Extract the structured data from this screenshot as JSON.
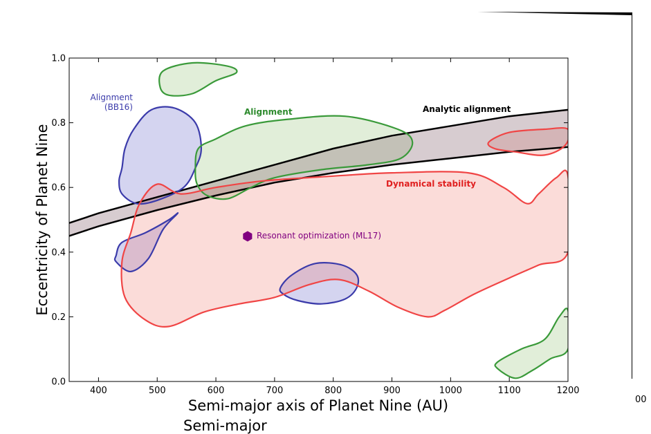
{
  "chart_data": {
    "type": "scatter",
    "xlabel": "Semi-major axis of Planet Nine (AU)",
    "ylabel": "Eccentricity of Planet Nine",
    "xlim": [
      350,
      1200
    ],
    "ylim": [
      0.0,
      1.0
    ],
    "x_ticks": [
      "400",
      "500",
      "600",
      "700",
      "800",
      "900",
      "1000",
      "1100",
      "1200"
    ],
    "y_ticks": [
      "0.0",
      "0.2",
      "0.4",
      "0.6",
      "0.8",
      "1.0"
    ],
    "colors": {
      "blue": "#3b3baa",
      "green": "#3a9a3a",
      "red": "#f04545",
      "black": "#000000",
      "purple": "#800080"
    },
    "band": {
      "name": "Analytic alignment",
      "upper": [
        [
          350,
          0.49
        ],
        [
          400,
          0.52
        ],
        [
          500,
          0.57
        ],
        [
          600,
          0.62
        ],
        [
          700,
          0.67
        ],
        [
          800,
          0.72
        ],
        [
          900,
          0.76
        ],
        [
          1000,
          0.79
        ],
        [
          1100,
          0.82
        ],
        [
          1200,
          0.84
        ]
      ],
      "lower": [
        [
          350,
          0.45
        ],
        [
          400,
          0.48
        ],
        [
          500,
          0.53
        ],
        [
          600,
          0.575
        ],
        [
          700,
          0.615
        ],
        [
          800,
          0.645
        ],
        [
          900,
          0.67
        ],
        [
          1000,
          0.69
        ],
        [
          1100,
          0.71
        ],
        [
          1200,
          0.725
        ]
      ]
    },
    "regions": [
      {
        "name": "Alignment (BB16) main",
        "color": "blue",
        "points": [
          [
            440,
            0.66
          ],
          [
            445,
            0.72
          ],
          [
            460,
            0.78
          ],
          [
            490,
            0.84
          ],
          [
            530,
            0.845
          ],
          [
            565,
            0.8
          ],
          [
            575,
            0.72
          ],
          [
            565,
            0.66
          ],
          [
            545,
            0.6
          ],
          [
            500,
            0.56
          ],
          [
            465,
            0.55
          ],
          [
            440,
            0.58
          ],
          [
            435,
            0.62
          ]
        ]
      },
      {
        "name": "Alignment (BB16) lower",
        "color": "blue",
        "points": [
          [
            430,
            0.39
          ],
          [
            440,
            0.43
          ],
          [
            480,
            0.46
          ],
          [
            520,
            0.5
          ],
          [
            535,
            0.52
          ],
          [
            510,
            0.47
          ],
          [
            485,
            0.38
          ],
          [
            455,
            0.34
          ],
          [
            430,
            0.37
          ]
        ]
      },
      {
        "name": "Alignment (BB16) middle",
        "color": "blue",
        "points": [
          [
            710,
            0.29
          ],
          [
            730,
            0.33
          ],
          [
            770,
            0.365
          ],
          [
            815,
            0.36
          ],
          [
            840,
            0.33
          ],
          [
            840,
            0.29
          ],
          [
            820,
            0.255
          ],
          [
            780,
            0.24
          ],
          [
            740,
            0.25
          ],
          [
            715,
            0.27
          ]
        ]
      },
      {
        "name": "Alignment main",
        "color": "green",
        "points": [
          [
            565,
            0.66
          ],
          [
            570,
            0.72
          ],
          [
            600,
            0.75
          ],
          [
            650,
            0.79
          ],
          [
            720,
            0.81
          ],
          [
            820,
            0.82
          ],
          [
            910,
            0.78
          ],
          [
            935,
            0.74
          ],
          [
            915,
            0.69
          ],
          [
            860,
            0.67
          ],
          [
            780,
            0.655
          ],
          [
            700,
            0.63
          ],
          [
            660,
            0.6
          ],
          [
            620,
            0.565
          ],
          [
            585,
            0.575
          ],
          [
            568,
            0.61
          ]
        ]
      },
      {
        "name": "Alignment top",
        "color": "green",
        "points": [
          [
            510,
            0.96
          ],
          [
            560,
            0.985
          ],
          [
            620,
            0.975
          ],
          [
            635,
            0.955
          ],
          [
            600,
            0.93
          ],
          [
            560,
            0.89
          ],
          [
            520,
            0.885
          ],
          [
            505,
            0.91
          ]
        ]
      },
      {
        "name": "Alignment lower right",
        "color": "green",
        "points": [
          [
            1080,
            0.06
          ],
          [
            1120,
            0.1
          ],
          [
            1160,
            0.13
          ],
          [
            1185,
            0.2
          ],
          [
            1200,
            0.22
          ],
          [
            1200,
            0.1
          ],
          [
            1170,
            0.07
          ],
          [
            1140,
            0.035
          ],
          [
            1110,
            0.01
          ],
          [
            1080,
            0.04
          ]
        ]
      },
      {
        "name": "Dynamical stability main",
        "color": "red",
        "points": [
          [
            440,
            0.37
          ],
          [
            455,
            0.46
          ],
          [
            470,
            0.55
          ],
          [
            500,
            0.61
          ],
          [
            540,
            0.58
          ],
          [
            600,
            0.6
          ],
          [
            680,
            0.62
          ],
          [
            800,
            0.635
          ],
          [
            900,
            0.645
          ],
          [
            1030,
            0.645
          ],
          [
            1090,
            0.6
          ],
          [
            1130,
            0.55
          ],
          [
            1150,
            0.58
          ],
          [
            1180,
            0.63
          ],
          [
            1200,
            0.635
          ],
          [
            1200,
            0.4
          ],
          [
            1150,
            0.36
          ],
          [
            1100,
            0.32
          ],
          [
            1040,
            0.27
          ],
          [
            990,
            0.22
          ],
          [
            960,
            0.2
          ],
          [
            910,
            0.23
          ],
          [
            860,
            0.28
          ],
          [
            810,
            0.315
          ],
          [
            760,
            0.3
          ],
          [
            700,
            0.26
          ],
          [
            640,
            0.24
          ],
          [
            580,
            0.215
          ],
          [
            520,
            0.17
          ],
          [
            480,
            0.19
          ],
          [
            445,
            0.26
          ]
        ]
      },
      {
        "name": "Dynamical stability right",
        "color": "red",
        "points": [
          [
            1065,
            0.74
          ],
          [
            1100,
            0.77
          ],
          [
            1160,
            0.78
          ],
          [
            1200,
            0.78
          ],
          [
            1195,
            0.73
          ],
          [
            1160,
            0.7
          ],
          [
            1110,
            0.71
          ],
          [
            1075,
            0.72
          ]
        ]
      }
    ],
    "point": {
      "name": "Resonant optimization (ML17)",
      "x": 654,
      "y": 0.449,
      "color": "purple"
    },
    "annotations": {
      "bb16_line1": "Alignment",
      "bb16_line2": "(BB16)",
      "alignment": "Alignment",
      "analytic": "Analytic alignment",
      "stability": "Dynamical stability",
      "resonant": "Resonant optimization (ML17)"
    },
    "stray_text": {
      "right_fragment": "00",
      "bottom_fragment": "Semi-major"
    }
  }
}
